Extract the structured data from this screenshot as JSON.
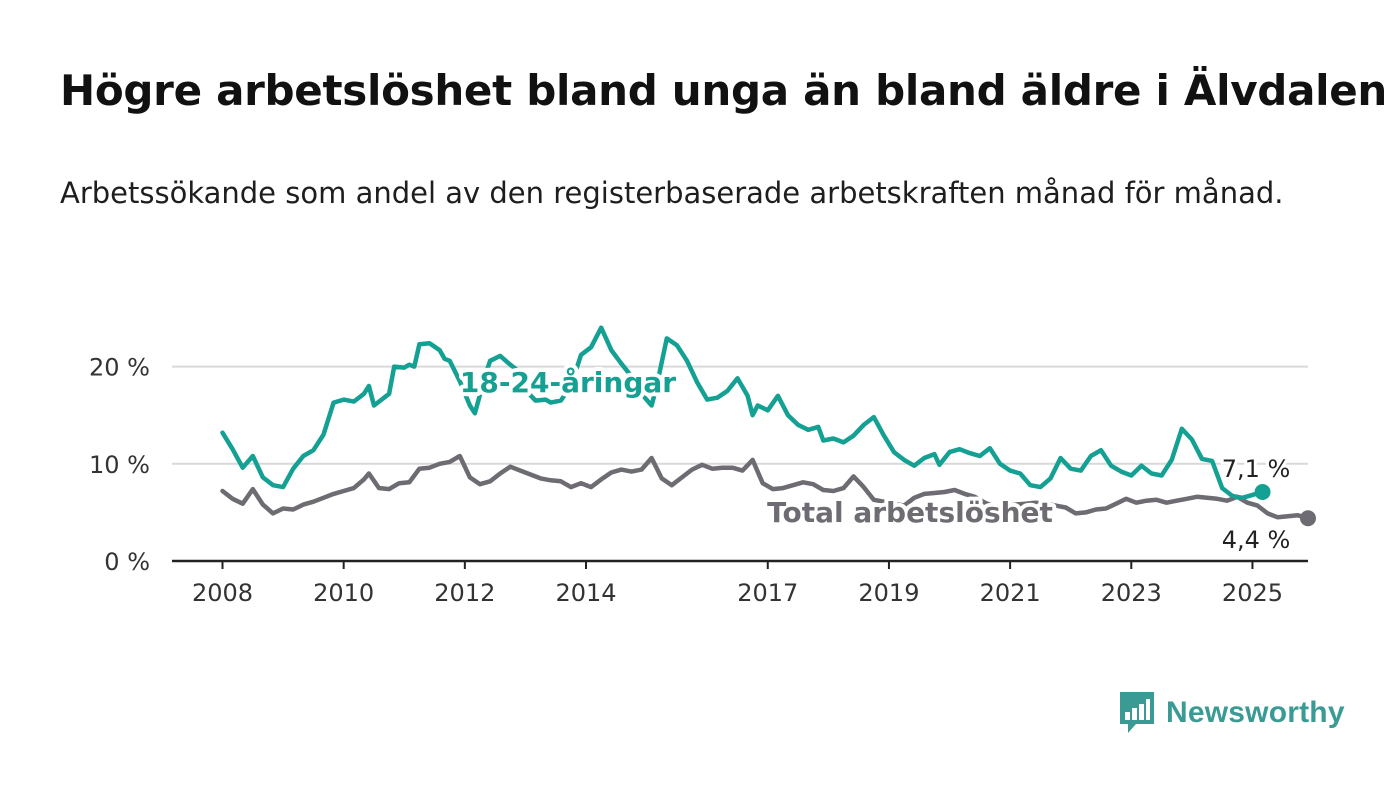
{
  "title": "Högre arbetslöshet bland unga än bland äldre i Älvdalen",
  "subtitle": "Arbetssökande som andel av den registerbaserade arbetskraften månad för månad.",
  "brand": {
    "name": "Newsworthy",
    "color": "#3a9a94",
    "icon": "bar-chart-speech-bubble-icon"
  },
  "chart_data": {
    "type": "line",
    "x_ticks": [
      "2008",
      "2010",
      "2012",
      "2014",
      "2017",
      "2019",
      "2021",
      "2023",
      "2025"
    ],
    "y_ticks": [
      "0 %",
      "10 %",
      "20 %"
    ],
    "ylim": [
      0,
      25
    ],
    "xlim": [
      "2007-03",
      "2025-12"
    ],
    "grid": true,
    "series": [
      {
        "name": "18-24-åringar",
        "color": "#14a093",
        "end_label": "7,1 %",
        "points": [
          [
            "2008-01",
            13.2
          ],
          [
            "2008-03",
            11.5
          ],
          [
            "2008-05",
            9.6
          ],
          [
            "2008-07",
            10.8
          ],
          [
            "2008-09",
            8.6
          ],
          [
            "2008-11",
            7.8
          ],
          [
            "2009-01",
            7.6
          ],
          [
            "2009-03",
            9.5
          ],
          [
            "2009-05",
            10.8
          ],
          [
            "2009-07",
            11.4
          ],
          [
            "2009-09",
            13.0
          ],
          [
            "2009-11",
            16.3
          ],
          [
            "2010-01",
            16.6
          ],
          [
            "2010-03",
            16.4
          ],
          [
            "2010-05",
            17.2
          ],
          [
            "2010-06",
            18.0
          ],
          [
            "2010-07",
            16.0
          ],
          [
            "2010-09",
            16.8
          ],
          [
            "2010-10",
            17.2
          ],
          [
            "2010-11",
            20.0
          ],
          [
            "2011-01",
            19.9
          ],
          [
            "2011-02",
            20.2
          ],
          [
            "2011-03",
            20.0
          ],
          [
            "2011-04",
            22.3
          ],
          [
            "2011-06",
            22.4
          ],
          [
            "2011-08",
            21.7
          ],
          [
            "2011-09",
            20.8
          ],
          [
            "2011-10",
            20.6
          ],
          [
            "2011-12",
            18.5
          ],
          [
            "2012-02",
            16.0
          ],
          [
            "2012-03",
            15.2
          ],
          [
            "2012-05",
            19.0
          ],
          [
            "2012-06",
            20.6
          ],
          [
            "2012-08",
            21.1
          ],
          [
            "2012-10",
            20.2
          ],
          [
            "2012-11",
            19.8
          ],
          [
            "2013-01",
            17.6
          ],
          [
            "2013-03",
            16.5
          ],
          [
            "2013-05",
            16.6
          ],
          [
            "2013-06",
            16.3
          ],
          [
            "2013-08",
            16.5
          ],
          [
            "2013-10",
            18.0
          ],
          [
            "2013-12",
            21.2
          ],
          [
            "2014-02",
            22.0
          ],
          [
            "2014-04",
            24.0
          ],
          [
            "2014-06",
            21.7
          ],
          [
            "2014-08",
            20.3
          ],
          [
            "2014-10",
            19.0
          ],
          [
            "2014-12",
            17.2
          ],
          [
            "2015-02",
            16.0
          ],
          [
            "2015-03",
            18.0
          ],
          [
            "2015-05",
            22.9
          ],
          [
            "2015-07",
            22.2
          ],
          [
            "2015-09",
            20.6
          ],
          [
            "2015-11",
            18.4
          ],
          [
            "2016-01",
            16.6
          ],
          [
            "2016-03",
            16.8
          ],
          [
            "2016-05",
            17.5
          ],
          [
            "2016-07",
            18.8
          ],
          [
            "2016-09",
            17.0
          ],
          [
            "2016-10",
            15.0
          ],
          [
            "2016-11",
            16.0
          ],
          [
            "2017-01",
            15.5
          ],
          [
            "2017-03",
            17.0
          ],
          [
            "2017-05",
            15.0
          ],
          [
            "2017-07",
            14.0
          ],
          [
            "2017-09",
            13.5
          ],
          [
            "2017-11",
            13.8
          ],
          [
            "2017-12",
            12.4
          ],
          [
            "2018-02",
            12.6
          ],
          [
            "2018-04",
            12.2
          ],
          [
            "2018-06",
            12.9
          ],
          [
            "2018-08",
            14.0
          ],
          [
            "2018-10",
            14.8
          ],
          [
            "2018-12",
            12.9
          ],
          [
            "2019-02",
            11.2
          ],
          [
            "2019-04",
            10.4
          ],
          [
            "2019-06",
            9.8
          ],
          [
            "2019-08",
            10.6
          ],
          [
            "2019-10",
            11.0
          ],
          [
            "2019-11",
            9.9
          ],
          [
            "2020-01",
            11.2
          ],
          [
            "2020-03",
            11.5
          ],
          [
            "2020-05",
            11.1
          ],
          [
            "2020-07",
            10.8
          ],
          [
            "2020-09",
            11.6
          ],
          [
            "2020-11",
            10.0
          ],
          [
            "2021-01",
            9.3
          ],
          [
            "2021-03",
            9.0
          ],
          [
            "2021-05",
            7.8
          ],
          [
            "2021-07",
            7.6
          ],
          [
            "2021-09",
            8.5
          ],
          [
            "2021-11",
            10.6
          ],
          [
            "2022-01",
            9.5
          ],
          [
            "2022-03",
            9.3
          ],
          [
            "2022-05",
            10.8
          ],
          [
            "2022-07",
            11.4
          ],
          [
            "2022-09",
            9.8
          ],
          [
            "2022-11",
            9.2
          ],
          [
            "2023-01",
            8.8
          ],
          [
            "2023-03",
            9.8
          ],
          [
            "2023-05",
            9.0
          ],
          [
            "2023-07",
            8.8
          ],
          [
            "2023-09",
            10.4
          ],
          [
            "2023-11",
            13.6
          ],
          [
            "2024-01",
            12.5
          ],
          [
            "2024-03",
            10.5
          ],
          [
            "2024-05",
            10.3
          ],
          [
            "2024-07",
            7.5
          ],
          [
            "2024-09",
            6.7
          ],
          [
            "2024-11",
            6.5
          ],
          [
            "2025-01",
            6.8
          ],
          [
            "2025-03",
            7.1
          ]
        ]
      },
      {
        "name": "Total arbetslöshet",
        "color": "#6e6c72",
        "end_label": "4,4 %",
        "points": [
          [
            "2008-01",
            7.2
          ],
          [
            "2008-03",
            6.4
          ],
          [
            "2008-05",
            5.9
          ],
          [
            "2008-07",
            7.4
          ],
          [
            "2008-09",
            5.8
          ],
          [
            "2008-11",
            4.9
          ],
          [
            "2009-01",
            5.4
          ],
          [
            "2009-03",
            5.3
          ],
          [
            "2009-05",
            5.8
          ],
          [
            "2009-07",
            6.1
          ],
          [
            "2009-09",
            6.5
          ],
          [
            "2009-11",
            6.9
          ],
          [
            "2010-01",
            7.2
          ],
          [
            "2010-03",
            7.5
          ],
          [
            "2010-05",
            8.4
          ],
          [
            "2010-06",
            9.0
          ],
          [
            "2010-08",
            7.5
          ],
          [
            "2010-10",
            7.4
          ],
          [
            "2010-12",
            8.0
          ],
          [
            "2011-02",
            8.1
          ],
          [
            "2011-04",
            9.5
          ],
          [
            "2011-06",
            9.6
          ],
          [
            "2011-08",
            10.0
          ],
          [
            "2011-10",
            10.2
          ],
          [
            "2011-12",
            10.8
          ],
          [
            "2012-02",
            8.6
          ],
          [
            "2012-04",
            7.9
          ],
          [
            "2012-06",
            8.2
          ],
          [
            "2012-08",
            9.0
          ],
          [
            "2012-10",
            9.7
          ],
          [
            "2012-12",
            9.3
          ],
          [
            "2013-02",
            8.9
          ],
          [
            "2013-04",
            8.5
          ],
          [
            "2013-06",
            8.3
          ],
          [
            "2013-08",
            8.2
          ],
          [
            "2013-10",
            7.6
          ],
          [
            "2013-12",
            8.0
          ],
          [
            "2014-02",
            7.6
          ],
          [
            "2014-04",
            8.4
          ],
          [
            "2014-06",
            9.1
          ],
          [
            "2014-08",
            9.4
          ],
          [
            "2014-10",
            9.2
          ],
          [
            "2014-12",
            9.4
          ],
          [
            "2015-02",
            10.6
          ],
          [
            "2015-04",
            8.5
          ],
          [
            "2015-06",
            7.8
          ],
          [
            "2015-08",
            8.6
          ],
          [
            "2015-10",
            9.4
          ],
          [
            "2015-12",
            9.9
          ],
          [
            "2016-02",
            9.5
          ],
          [
            "2016-04",
            9.6
          ],
          [
            "2016-06",
            9.6
          ],
          [
            "2016-08",
            9.3
          ],
          [
            "2016-10",
            10.4
          ],
          [
            "2016-12",
            8.0
          ],
          [
            "2017-02",
            7.4
          ],
          [
            "2017-04",
            7.5
          ],
          [
            "2017-06",
            7.8
          ],
          [
            "2017-08",
            8.1
          ],
          [
            "2017-10",
            7.9
          ],
          [
            "2017-12",
            7.3
          ],
          [
            "2018-02",
            7.2
          ],
          [
            "2018-04",
            7.5
          ],
          [
            "2018-06",
            8.7
          ],
          [
            "2018-08",
            7.6
          ],
          [
            "2018-10",
            6.3
          ],
          [
            "2018-12",
            6.1
          ],
          [
            "2019-02",
            5.9
          ],
          [
            "2019-04",
            5.7
          ],
          [
            "2019-06",
            6.5
          ],
          [
            "2019-08",
            6.9
          ],
          [
            "2019-10",
            7.0
          ],
          [
            "2019-12",
            7.1
          ],
          [
            "2020-02",
            7.3
          ],
          [
            "2020-04",
            6.9
          ],
          [
            "2020-06",
            6.6
          ],
          [
            "2020-08",
            6.0
          ],
          [
            "2020-10",
            5.6
          ],
          [
            "2020-12",
            5.7
          ],
          [
            "2021-02",
            5.8
          ],
          [
            "2021-04",
            5.9
          ],
          [
            "2021-06",
            6.0
          ],
          [
            "2021-08",
            5.9
          ],
          [
            "2021-10",
            5.7
          ],
          [
            "2021-12",
            5.5
          ],
          [
            "2022-02",
            4.9
          ],
          [
            "2022-04",
            5.0
          ],
          [
            "2022-06",
            5.3
          ],
          [
            "2022-08",
            5.4
          ],
          [
            "2022-10",
            5.9
          ],
          [
            "2022-12",
            6.4
          ],
          [
            "2023-02",
            6.0
          ],
          [
            "2023-04",
            6.2
          ],
          [
            "2023-06",
            6.3
          ],
          [
            "2023-08",
            6.0
          ],
          [
            "2023-10",
            6.2
          ],
          [
            "2023-12",
            6.4
          ],
          [
            "2024-02",
            6.6
          ],
          [
            "2024-04",
            6.5
          ],
          [
            "2024-06",
            6.4
          ],
          [
            "2024-08",
            6.2
          ],
          [
            "2024-10",
            6.6
          ],
          [
            "2024-12",
            6.0
          ],
          [
            "2025-02",
            5.7
          ],
          [
            "2025-04",
            4.9
          ],
          [
            "2025-06",
            4.5
          ],
          [
            "2025-08",
            4.6
          ],
          [
            "2025-10",
            4.7
          ],
          [
            "2025-12",
            4.4
          ]
        ]
      }
    ]
  }
}
